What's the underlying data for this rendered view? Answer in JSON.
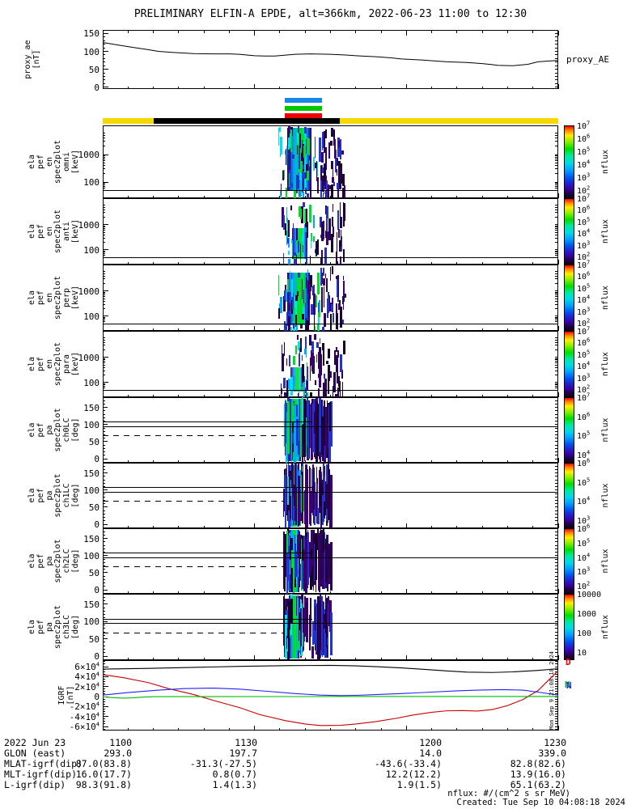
{
  "title": "PRELIMINARY ELFIN-A EPDE, alt=366km, 2022-06-23 11:00 to 12:30",
  "time_axis": {
    "tick_labels": [
      "1100",
      "1130",
      "1200",
      "1230"
    ],
    "start": "11:00",
    "end": "12:30"
  },
  "legend_bars": [
    {
      "name": "blue-bar",
      "color": "#1787e8"
    },
    {
      "name": "green-bar",
      "color": "#00c800"
    },
    {
      "name": "red-bar",
      "color": "#f00000"
    }
  ],
  "zone_bar": {
    "segments": [
      {
        "color": "#f5d800",
        "widthFrac": 0.112
      },
      {
        "color": "#000000",
        "widthFrac": 0.408
      },
      {
        "color": "#f5d800",
        "widthFrac": 0.48
      }
    ]
  },
  "ephemeris_table": {
    "row_labels": [
      "2022 Jun 23",
      "GLON (east)",
      "MLAT-igrf(dip)",
      "MLT-igrf(dip)",
      "L-igrf(dip)"
    ],
    "columns": [
      [
        "1100",
        "293.0",
        "87.0(83.8)",
        "16.0(17.7)",
        "98.3(91.8)"
      ],
      [
        "1130",
        "197.7",
        "-31.3(-27.5)",
        "0.8(0.7)",
        "1.4(1.3)"
      ],
      [
        "1200",
        "14.0",
        "-43.6(-33.4)",
        "12.2(12.2)",
        "1.9(1.5)"
      ],
      [
        "1230",
        "339.0",
        "82.8(82.6)",
        "13.9(16.0)",
        "65.1(63.2)"
      ]
    ]
  },
  "footer": {
    "units": "nflux: #/(cm^2 s sr MeV)",
    "created": "Created: Tue Sep 10 04:08:18 2024",
    "side_timestamp": "Mon Sep 9 21:08:18 2024"
  },
  "chart_data": [
    {
      "id": "proxy_ae",
      "type": "line",
      "ylabel_lines": [
        "proxy_ae",
        "[nT]"
      ],
      "right_label": "proxy_AE",
      "yticks": [
        "0",
        "50",
        "100",
        "150"
      ],
      "ylim": [
        -5,
        160
      ],
      "line_color": "#000000",
      "x_minutes": [
        0,
        3,
        6,
        9,
        11,
        14,
        18,
        22,
        25,
        27,
        30,
        32,
        34,
        38,
        41,
        45,
        48,
        50,
        54,
        57,
        59,
        63,
        66,
        68,
        72,
        75,
        77,
        78,
        81,
        84,
        86,
        90
      ],
      "values": [
        125,
        118,
        111,
        105,
        100,
        97,
        94,
        93,
        93,
        92,
        88,
        87,
        87,
        92,
        93,
        92,
        90,
        88,
        85,
        82,
        79,
        76,
        73,
        71,
        69,
        66,
        63,
        61,
        60,
        64,
        71,
        75
      ]
    },
    {
      "id": "omni",
      "type": "heatmap",
      "yscale": "log",
      "yunit": "keV",
      "ylabel_lines": [
        "ela",
        "pef",
        "en",
        "spec2plot",
        "omni",
        "[keV]"
      ],
      "yticks": [
        "1000",
        "100"
      ],
      "colorbar_ticks": [
        "10^7",
        "10^6",
        "10^5",
        "10^4",
        "10^3",
        "10^2"
      ],
      "colorbar_label": "nflux",
      "burst_interval": [
        "11:36",
        "11:48"
      ]
    },
    {
      "id": "anti",
      "type": "heatmap",
      "yscale": "log",
      "yunit": "keV",
      "ylabel_lines": [
        "ela",
        "pef",
        "en",
        "spec2plot",
        "anti",
        "[keV]"
      ],
      "yticks": [
        "1000",
        "100"
      ],
      "colorbar_ticks": [
        "10^7",
        "10^6",
        "10^5",
        "10^4",
        "10^3",
        "10^2"
      ],
      "colorbar_label": "nflux",
      "burst_interval": [
        "11:36",
        "11:48"
      ]
    },
    {
      "id": "perp",
      "type": "heatmap",
      "yscale": "log",
      "yunit": "keV",
      "ylabel_lines": [
        "ela",
        "pef",
        "en",
        "spec2plot",
        "perp",
        "[keV]"
      ],
      "yticks": [
        "1000",
        "100"
      ],
      "colorbar_ticks": [
        "10^7",
        "10^6",
        "10^5",
        "10^4",
        "10^3",
        "10^2"
      ],
      "colorbar_label": "nflux",
      "burst_interval": [
        "11:36",
        "11:48"
      ]
    },
    {
      "id": "para",
      "type": "heatmap",
      "yscale": "log",
      "yunit": "keV",
      "ylabel_lines": [
        "ela",
        "pef",
        "en",
        "spec2plot",
        "para",
        "[keV]"
      ],
      "yticks": [
        "1000",
        "100"
      ],
      "colorbar_ticks": [
        "10^7",
        "10^6",
        "10^5",
        "10^4",
        "10^3",
        "10^2"
      ],
      "colorbar_label": "nflux",
      "burst_interval": [
        "11:36",
        "11:48"
      ]
    },
    {
      "id": "ch0LC",
      "type": "heatmap",
      "yscale": "linear",
      "yunit": "deg",
      "ylabel_lines": [
        "ela",
        "pef",
        "pa",
        "spec2plot",
        "ch0LC",
        "[deg]"
      ],
      "yticks": [
        "0",
        "50",
        "100",
        "150"
      ],
      "colorbar_ticks": [
        "10^7",
        "10^6",
        "10^5",
        "10^4"
      ],
      "colorbar_label": "nflux",
      "lines_deg": {
        "solid_full": 96,
        "solid_partial": 108,
        "dashed_partial": 68
      },
      "burst_interval": [
        "11:36",
        "11:45"
      ]
    },
    {
      "id": "ch1LC",
      "type": "heatmap",
      "yscale": "linear",
      "yunit": "deg",
      "ylabel_lines": [
        "ela",
        "pef",
        "pa",
        "spec2plot",
        "ch1LC",
        "[deg]"
      ],
      "yticks": [
        "0",
        "50",
        "100",
        "150"
      ],
      "colorbar_ticks": [
        "10^6",
        "10^5",
        "10^4",
        "10^3"
      ],
      "colorbar_label": "nflux",
      "lines_deg": {
        "solid_full": 96,
        "solid_partial": 108,
        "dashed_partial": 68
      },
      "burst_interval": [
        "11:36",
        "11:45"
      ]
    },
    {
      "id": "ch2LC",
      "type": "heatmap",
      "yscale": "linear",
      "yunit": "deg",
      "ylabel_lines": [
        "ela",
        "pef",
        "pa",
        "spec2plot",
        "ch2LC",
        "[deg]"
      ],
      "yticks": [
        "0",
        "50",
        "100",
        "150"
      ],
      "colorbar_ticks": [
        "10^6",
        "10^5",
        "10^4",
        "10^3",
        "10^2"
      ],
      "colorbar_label": "nflux",
      "lines_deg": {
        "solid_full": 96,
        "solid_partial": 108,
        "dashed_partial": 68
      },
      "burst_interval": [
        "11:36",
        "11:45"
      ]
    },
    {
      "id": "ch3LC",
      "type": "heatmap",
      "yscale": "linear",
      "yunit": "deg",
      "ylabel_lines": [
        "ela",
        "pef",
        "pa",
        "spec2plot",
        "ch3LC",
        "[deg]"
      ],
      "yticks": [
        "0",
        "50",
        "100",
        "150"
      ],
      "colorbar_ticks": [
        "10000",
        "1000",
        "100",
        "10"
      ],
      "colorbar_label": "nflux",
      "lines_deg": {
        "solid_full": 96,
        "solid_partial": 108,
        "dashed_partial": 68
      },
      "burst_interval": [
        "11:36",
        "11:45"
      ]
    },
    {
      "id": "igrf",
      "type": "line",
      "ylabel_lines": [
        "IGRF",
        "[nT]"
      ],
      "yticks": [
        "6×10^4",
        "4×10^4",
        "2×10^4",
        "0",
        "-2×10^4",
        "-4×10^4",
        "-6×10^4"
      ],
      "ylim": [
        -68000,
        73000
      ],
      "right_labels": [
        {
          "text": "D",
          "color": "#ff0000"
        },
        {
          "text": "N",
          "color": "#00bb00"
        },
        {
          "text": "N",
          "color": "#2222ff"
        }
      ],
      "series": [
        {
          "name": "btotal",
          "color": "#000000",
          "x_minutes": [
            0,
            9,
            18,
            27,
            36,
            45,
            50,
            54,
            59,
            63,
            68,
            72,
            77,
            81,
            86,
            90
          ],
          "values": [
            55000,
            56500,
            58500,
            60500,
            62000,
            62500,
            61500,
            60000,
            57500,
            54800,
            51500,
            49000,
            48300,
            49500,
            52500,
            55800
          ]
        },
        {
          "name": "D",
          "color": "#cc0000",
          "x_minutes": [
            0,
            4,
            9,
            13,
            18,
            22,
            27,
            31,
            36,
            40,
            43,
            47,
            50,
            54,
            58,
            61,
            65,
            68,
            71,
            74,
            77,
            80,
            83,
            86,
            88,
            90
          ],
          "values": [
            44000,
            38000,
            28000,
            16000,
            4000,
            -8000,
            -22000,
            -36000,
            -48000,
            -55000,
            -58000,
            -57500,
            -55000,
            -50000,
            -43500,
            -37500,
            -31500,
            -28500,
            -28000,
            -29000,
            -26000,
            -18000,
            -6000,
            12000,
            32000,
            52000
          ]
        },
        {
          "name": "N",
          "color": "#2222ff",
          "x_minutes": [
            0,
            5,
            11,
            16,
            22,
            27,
            32,
            38,
            43,
            47,
            50,
            54,
            59,
            65,
            70,
            74,
            79,
            83,
            86,
            90
          ],
          "values": [
            3000,
            8000,
            13000,
            16000,
            17000,
            15000,
            11000,
            6000,
            3000,
            2000,
            2500,
            4000,
            6000,
            9000,
            11500,
            13000,
            14000,
            13000,
            9000,
            3000
          ]
        },
        {
          "name": "E",
          "color": "#00bb00",
          "x_minutes": [
            0,
            2,
            4,
            6,
            8,
            10,
            14,
            45,
            90
          ],
          "values": [
            -500,
            -2000,
            -3000,
            -2500,
            -1000,
            -200,
            0,
            100,
            200
          ]
        }
      ]
    }
  ]
}
